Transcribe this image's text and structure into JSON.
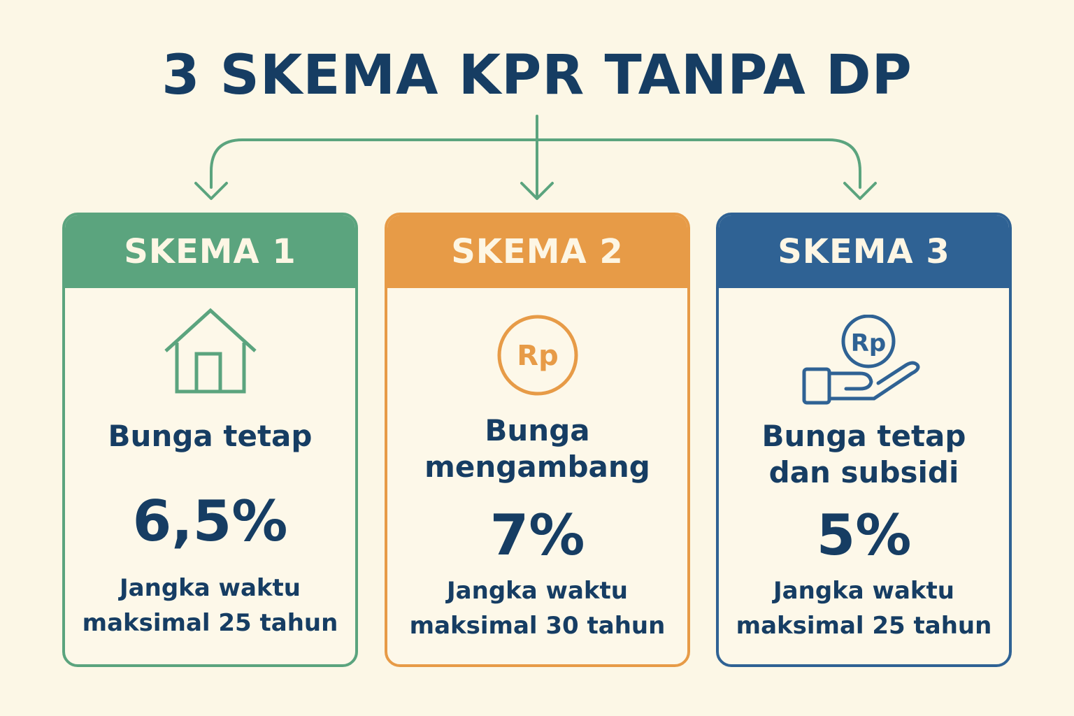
{
  "title": "3 SKEMA KPR TANPA DP",
  "colors": {
    "background": "#fcf7e6",
    "text": "#163d63",
    "green": "#5ba47e",
    "orange": "#e79b47",
    "blue": "#2f6294"
  },
  "schemes": [
    {
      "header": "SKEMA 1",
      "icon": "house-icon",
      "label_lines": [
        "Bunga tetap"
      ],
      "rate": "6,5%",
      "term_lines": [
        "Jangka waktu",
        "maksimal 25 tahun"
      ]
    },
    {
      "header": "SKEMA 2",
      "icon": "rupiah-coin-icon",
      "icon_text": "Rp",
      "label_lines": [
        "Bunga",
        "mengambang"
      ],
      "rate": "7%",
      "term_lines": [
        "Jangka waktu",
        "maksimal 30 tahun"
      ]
    },
    {
      "header": "SKEMA 3",
      "icon": "hand-rupiah-coin-icon",
      "icon_text": "Rp",
      "label_lines": [
        "Bunga tetap",
        "dan subsidi"
      ],
      "rate": "5%",
      "term_lines": [
        "Jangka waktu",
        "maksimal 25 tahun"
      ]
    }
  ]
}
